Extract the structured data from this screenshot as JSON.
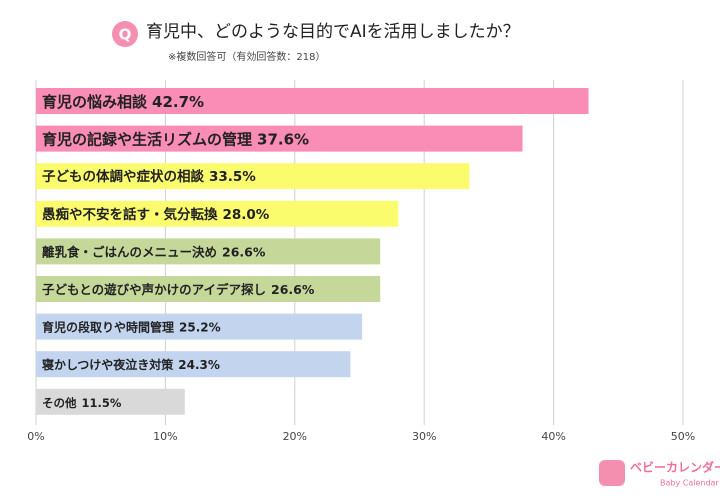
{
  "chart_data": {
    "type": "bar",
    "orientation": "horizontal",
    "badge": "Q",
    "title": "育児中、どのような目的でAIを活用しましたか？",
    "subtitle": "※複数回答可（有効回答数：218）",
    "categories": [
      "育児の悩み相談",
      "育児の記録や生活リズムの管理",
      "子どもの体調や症状の相談",
      "愚痴や不安を話す・気分転換",
      "離乳食・ごはんのメニュー決め",
      "子どもとの遊びや声かけのアイデア探し",
      "育児の段取りや時間管理",
      "寝かしつけや夜泣き対策",
      "その他"
    ],
    "values": [
      42.7,
      37.6,
      33.5,
      28.0,
      26.6,
      26.6,
      25.2,
      24.3,
      11.5
    ],
    "value_labels": [
      "42.7%",
      "37.6%",
      "33.5%",
      "28.0%",
      "26.6%",
      "26.6%",
      "25.2%",
      "24.3%",
      "11.5%"
    ],
    "colors": [
      "#f98db5",
      "#f98db5",
      "#fbfb6e",
      "#fbfb6e",
      "#c5d89a",
      "#c5d89a",
      "#c3d5ee",
      "#c3d5ee",
      "#d9d9d9"
    ],
    "xlim": [
      0,
      50
    ],
    "xticks": [
      {
        "value": 0,
        "label": "0%"
      },
      {
        "value": 10,
        "label": "10%"
      },
      {
        "value": 20,
        "label": "20%"
      },
      {
        "value": 30,
        "label": "30%"
      },
      {
        "value": 40,
        "label": "40%"
      },
      {
        "value": 50,
        "label": "50%"
      }
    ],
    "grid": true
  },
  "logo": {
    "name": "ベビーカレンダー",
    "sub": "Baby Calendar"
  }
}
